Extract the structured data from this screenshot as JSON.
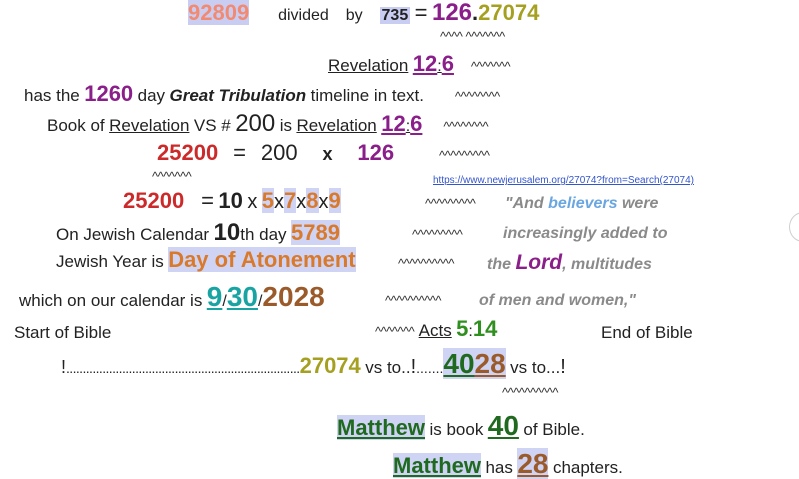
{
  "line1": {
    "a": "92809",
    "b": "divided",
    "c": "by",
    "d": "735",
    "eq": "=",
    "e": "126",
    "dot": ".",
    "f": "27074"
  },
  "carets1": "^^^^  ^^^^^^^",
  "line2": {
    "rev": "Revelation",
    "n1": "12",
    "colon": ":",
    "n2": "6",
    "carets": "^^^^^^^"
  },
  "line3": {
    "pre": "has the",
    "n": "1260",
    "day": "day",
    "gt": "Great Tribulation",
    "post": "timeline in text.",
    "carets": "^^^^^^^^"
  },
  "line4": {
    "pre": "Book of",
    "rev": "Revelation",
    "vs": "VS #",
    "n": "200",
    "is": "is",
    "rev2": "Revelation",
    "n1": "12",
    "colon": ":",
    "n2": "6",
    "carets": "^^^^^^^^"
  },
  "line5": {
    "a": "25200",
    "eq": "=",
    "b": "200",
    "x": "x",
    "c": "126",
    "carets": "^^^^^^^^^"
  },
  "carets5": "^^^^^^^",
  "link": "https://www.newjerusalem.org/27074?from=Search(27074)",
  "line6": {
    "a": "25200",
    "eq": "=",
    "b": "10",
    "x1": "x",
    "c": "5",
    "x2": "x",
    "d": "7",
    "x3": "x",
    "e": "8",
    "x4": "x",
    "f": "9",
    "carets": "^^^^^^^^^"
  },
  "quote": {
    "open": "\"And ",
    "believers": "believers",
    "were": " were",
    "l2": "increasingly added to",
    "the": "the ",
    "lord": "Lord",
    "multi": ", multitudes",
    "l4": "of men and women,\""
  },
  "line7": {
    "pre": "On Jewish Calendar",
    "n": "10",
    "th": "th day",
    "yr": "5789",
    "carets": "^^^^^^^^^"
  },
  "line8": {
    "pre": "Jewish Year is",
    "day": "Day of Atonement",
    "carets": "^^^^^^^^^^"
  },
  "line9": {
    "pre": "which on our calendar is",
    "m": "9",
    "s1": "/",
    "d": "30",
    "s2": "/",
    "y": "2028",
    "carets": "^^^^^^^^^^"
  },
  "line10": {
    "start": "Start of Bible",
    "carets": "^^^^^^^",
    "acts": "Acts",
    "n1": "5",
    "colon": ":",
    "n2": "14",
    "end": "End of Bible"
  },
  "line11": {
    "bang1": "!",
    "dots1": ".......................................................................",
    "num": "27074",
    "vs1": "vs to..",
    "bang2": "!",
    "dots2": ".......",
    "g": "40",
    "b": "28",
    "vs2": "vs to...",
    "bang3": "!"
  },
  "carets11": "^^^^^^^^^^",
  "line12": {
    "book": "Matthew",
    "pre": "is book",
    "n": "40",
    "post": "of Bible."
  },
  "line13": {
    "book": "Matthew",
    "pre": "has",
    "n": "28",
    "post": "chapters."
  }
}
